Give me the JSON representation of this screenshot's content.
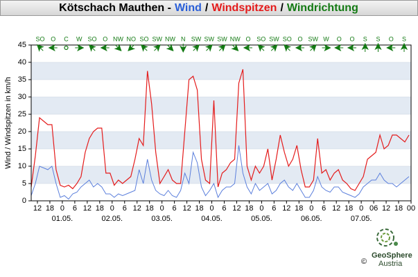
{
  "chart_data": {
    "type": "line",
    "title_parts": [
      {
        "text": "Kötschach Mauthen -",
        "color": "#000000"
      },
      {
        "text": "Wind",
        "color": "#2a5fd8"
      },
      {
        "text": "/",
        "color": "#000000"
      },
      {
        "text": "Windspitzen",
        "color": "#e41b1b"
      },
      {
        "text": "/",
        "color": "#000000"
      },
      {
        "text": "Windrichtung",
        "color": "#137a13"
      }
    ],
    "y_label": "Wind / Windspitzen in km/h",
    "x": [
      -15,
      -13,
      -11,
      -9,
      -7,
      -5,
      -3,
      -1,
      1,
      3,
      5,
      7,
      9,
      11,
      13,
      15,
      17,
      19,
      21,
      23,
      25,
      27,
      29,
      31,
      33,
      35,
      37,
      39,
      41,
      43,
      45,
      47,
      49,
      51,
      53,
      55,
      57,
      59,
      61,
      63,
      65,
      67,
      69,
      71,
      73,
      75,
      77,
      79,
      81,
      83,
      85,
      87,
      89,
      91,
      93,
      95,
      97,
      99,
      101,
      103,
      105,
      107,
      109,
      111,
      113,
      115,
      117,
      119,
      121,
      123,
      125,
      127,
      129,
      131,
      133,
      135,
      137,
      139,
      141,
      143,
      145,
      147,
      149,
      151,
      153,
      155,
      157,
      159,
      161,
      163,
      165,
      167
    ],
    "series": [
      {
        "name": "Wind",
        "color": "#5b7fdc",
        "values": [
          1.5,
          5,
          10,
          9.5,
          9,
          10,
          5,
          1,
          1.5,
          0.5,
          2,
          2.5,
          4,
          5,
          6,
          4,
          5,
          4,
          2,
          2,
          1,
          2,
          1.5,
          2,
          2.5,
          3,
          9,
          5,
          12,
          6,
          3,
          2,
          1.5,
          3,
          1.5,
          1,
          3,
          8,
          5,
          14,
          11,
          4,
          1.5,
          3,
          5,
          1,
          3,
          4,
          4,
          5,
          16,
          8,
          4,
          2,
          5,
          3,
          4,
          5,
          2,
          3,
          5,
          6,
          4,
          3,
          5,
          3,
          1,
          1,
          3,
          7,
          4,
          3,
          2.5,
          4,
          4,
          2.5,
          2,
          1.5,
          1,
          2,
          4,
          5,
          6,
          6,
          8,
          6,
          5,
          5,
          4,
          5,
          6,
          7
        ]
      },
      {
        "name": "Windspitzen",
        "color": "#e41b1b",
        "values": [
          4,
          13,
          24,
          23,
          22,
          22,
          9,
          4.5,
          4,
          4.5,
          3.5,
          5,
          7,
          14,
          18,
          20,
          21,
          21,
          8,
          8,
          4.5,
          6,
          5,
          6,
          7,
          12,
          18,
          16,
          37.5,
          28,
          14,
          5,
          7,
          9,
          6,
          5,
          5,
          20,
          35,
          36,
          32,
          12,
          6,
          5,
          29,
          4,
          8,
          9,
          11,
          12,
          34,
          38,
          10,
          6,
          10,
          8,
          10,
          15,
          6,
          12,
          19,
          14,
          10,
          12,
          16,
          9,
          4,
          4,
          6,
          18,
          8,
          9,
          6,
          8,
          9,
          6,
          5,
          3.5,
          3,
          5,
          7,
          12,
          13,
          14,
          19,
          15,
          16,
          19,
          19,
          18,
          17,
          19
        ]
      }
    ],
    "xlim": [
      -15,
      168
    ],
    "xticks": [
      {
        "value": -12,
        "label": "12"
      },
      {
        "value": -6,
        "label": "18"
      },
      0,
      6,
      12,
      18,
      {
        "value": 24,
        "label": "0"
      },
      {
        "value": 30,
        "label": "6"
      },
      {
        "value": 36,
        "label": "12"
      },
      {
        "value": 42,
        "label": "18"
      },
      {
        "value": 48,
        "label": "0"
      },
      {
        "value": 54,
        "label": "6"
      },
      {
        "value": 60,
        "label": "12"
      },
      {
        "value": 66,
        "label": "18"
      },
      {
        "value": 72,
        "label": "0"
      },
      {
        "value": 78,
        "label": "6"
      },
      {
        "value": 84,
        "label": "12"
      },
      {
        "value": 90,
        "label": "18"
      },
      {
        "value": 96,
        "label": "0"
      },
      {
        "value": 102,
        "label": "6"
      },
      {
        "value": 108,
        "label": "12"
      },
      {
        "value": 114,
        "label": "18"
      },
      {
        "value": 120,
        "label": "0"
      },
      {
        "value": 126,
        "label": "6"
      },
      {
        "value": 132,
        "label": "12"
      },
      {
        "value": 138,
        "label": "18"
      },
      {
        "value": 144,
        "label": "0"
      },
      {
        "value": 150,
        "label": "06"
      },
      {
        "value": 156,
        "label": "12"
      },
      {
        "value": 162,
        "label": "18"
      },
      {
        "value": 168,
        "label": "00"
      }
    ],
    "day_labels": [
      {
        "value": 0,
        "label": "01.05."
      },
      {
        "value": 24,
        "label": "02.05."
      },
      {
        "value": 48,
        "label": "03.05."
      },
      {
        "value": 72,
        "label": "04.05."
      },
      {
        "value": 96,
        "label": "05.05."
      },
      {
        "value": 120,
        "label": "06.05."
      },
      {
        "value": 144,
        "label": "07.05."
      }
    ],
    "ylim": [
      0,
      45
    ],
    "yticks": [
      0,
      5,
      10,
      15,
      20,
      25,
      30,
      35,
      40,
      45
    ],
    "grid": true,
    "band_color": "#e3eaf3",
    "direction_color": "#137a13",
    "wind_direction": [
      "SO",
      "O",
      "C",
      "W",
      "SO",
      "O",
      "NW",
      "NO",
      "SO",
      "SW",
      "NW",
      "N",
      "SW",
      "SW",
      "SW",
      "NW",
      "O",
      "SO",
      "SW",
      "SO",
      "O",
      "SW",
      "W",
      "O",
      "O",
      "S",
      "S",
      "O",
      "S"
    ],
    "credits": {
      "copyright": "©",
      "brand": "GeoSphere",
      "sub": "Austria"
    }
  }
}
